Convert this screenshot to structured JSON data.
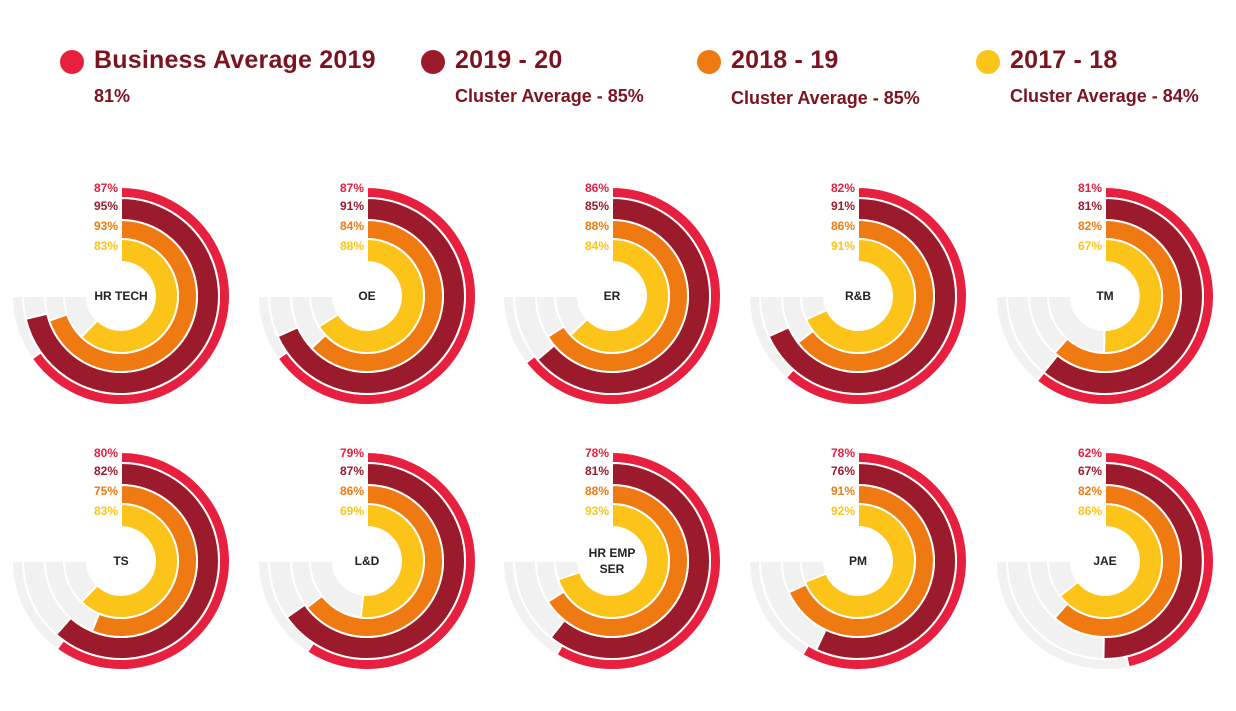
{
  "legend": [
    {
      "label": "Business Average 2019",
      "sub": "81%",
      "color": "#e8203f"
    },
    {
      "label": "2019 - 20",
      "sub": "Cluster Average - 85%",
      "color": "#9b1b2c"
    },
    {
      "label": "2018 - 19",
      "sub": "Cluster Average - 85%",
      "color": "#ef7a12"
    },
    {
      "label": "2017 - 18",
      "sub": "Cluster Average - 84%",
      "color": "#fcc419"
    }
  ],
  "colors": {
    "business_avg": "#e8203f",
    "fy2019_20": "#9b1b2c",
    "fy2018_19": "#ef7a12",
    "fy2017_18": "#fcc419",
    "track": "#f1f1f1",
    "center_label": "#222222"
  },
  "chart_data": {
    "type": "radial-bar",
    "max_value_degrees": 270,
    "series_names": [
      "Business Average 2019",
      "2019 - 20",
      "2018 - 19",
      "2017 - 18"
    ],
    "charts": [
      {
        "label": "HR TECH",
        "values": [
          87,
          95,
          93,
          83
        ],
        "labels": [
          "87%",
          "95%",
          "93%",
          "83%"
        ]
      },
      {
        "label": "OE",
        "values": [
          87,
          91,
          84,
          88
        ],
        "labels": [
          "87%",
          "91%",
          "84%",
          "88%"
        ]
      },
      {
        "label": "ER",
        "values": [
          86,
          85,
          88,
          84
        ],
        "labels": [
          "86%",
          "85%",
          "88%",
          "84%"
        ]
      },
      {
        "label": "R&B",
        "values": [
          82,
          91,
          86,
          91
        ],
        "labels": [
          "82%",
          "91%",
          "86%",
          "91%"
        ]
      },
      {
        "label": "TM",
        "values": [
          81,
          81,
          82,
          67
        ],
        "labels": [
          "81%",
          "81%",
          "82%",
          "67%"
        ]
      },
      {
        "label": "TS",
        "values": [
          80,
          82,
          75,
          83
        ],
        "labels": [
          "80%",
          "82%",
          "75%",
          "83%"
        ]
      },
      {
        "label": "L&D",
        "values": [
          79,
          87,
          86,
          69
        ],
        "labels": [
          "79%",
          "87%",
          "86%",
          "69%"
        ]
      },
      {
        "label": "HR EMP SER",
        "values": [
          78,
          81,
          88,
          93
        ],
        "labels": [
          "78%",
          "81%",
          "88%",
          "93%"
        ]
      },
      {
        "label": "PM",
        "values": [
          78,
          76,
          91,
          92
        ],
        "labels": [
          "78%",
          "76%",
          "91%",
          "92%"
        ]
      },
      {
        "label": "JAE",
        "values": [
          62,
          67,
          82,
          86
        ],
        "labels": [
          "62%",
          "67%",
          "82%",
          "86%"
        ]
      }
    ]
  }
}
